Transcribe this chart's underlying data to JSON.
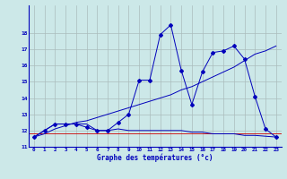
{
  "title": "Graphe des températures (°c)",
  "bg_color": "#cce8e8",
  "grid_color": "#aabcbc",
  "line_color": "#0000bb",
  "red_line_color": "#cc0000",
  "ylim": [
    11,
    19
  ],
  "xlim": [
    -0.5,
    23.5
  ],
  "yticks": [
    11,
    12,
    13,
    14,
    15,
    16,
    17,
    18
  ],
  "xticks": [
    0,
    1,
    2,
    3,
    4,
    5,
    6,
    7,
    8,
    9,
    10,
    11,
    12,
    13,
    14,
    15,
    16,
    17,
    18,
    19,
    20,
    21,
    22,
    23
  ],
  "series_flat_x": [
    0,
    1,
    2,
    3,
    4,
    5,
    6,
    7,
    8,
    9,
    10,
    11,
    12,
    13,
    14,
    15,
    16,
    17,
    18,
    19,
    20,
    21,
    22,
    23
  ],
  "series_flat_y": [
    11.6,
    12.0,
    12.4,
    12.4,
    12.4,
    12.4,
    12.0,
    12.0,
    12.1,
    12.0,
    12.0,
    12.0,
    12.0,
    12.0,
    12.0,
    11.9,
    11.9,
    11.8,
    11.8,
    11.8,
    11.7,
    11.7,
    11.65,
    11.6
  ],
  "series_trend_x": [
    0,
    23
  ],
  "series_trend_y": [
    11.6,
    17.2
  ],
  "series_main_x": [
    0,
    1,
    2,
    3,
    4,
    5,
    6,
    7,
    8,
    9,
    10,
    11,
    12,
    13,
    14,
    15,
    16,
    17,
    18,
    19,
    20,
    21,
    22,
    23
  ],
  "series_main_y": [
    11.6,
    12.0,
    12.4,
    12.4,
    12.4,
    12.2,
    12.0,
    12.0,
    12.5,
    13.0,
    15.1,
    15.1,
    17.9,
    18.5,
    15.7,
    13.6,
    15.6,
    16.8,
    16.9,
    17.2,
    16.4,
    14.1,
    12.1,
    11.6
  ],
  "series_diag_x": [
    0,
    1,
    2,
    3,
    4,
    5,
    6,
    7,
    8,
    9,
    10,
    11,
    12,
    13,
    14,
    15,
    16,
    17,
    18,
    19,
    20,
    21,
    22,
    23
  ],
  "series_diag_y": [
    11.6,
    11.8,
    12.1,
    12.3,
    12.5,
    12.6,
    12.8,
    13.0,
    13.2,
    13.4,
    13.6,
    13.8,
    14.0,
    14.2,
    14.5,
    14.7,
    15.0,
    15.3,
    15.6,
    15.9,
    16.3,
    16.7,
    16.9,
    17.2
  ]
}
